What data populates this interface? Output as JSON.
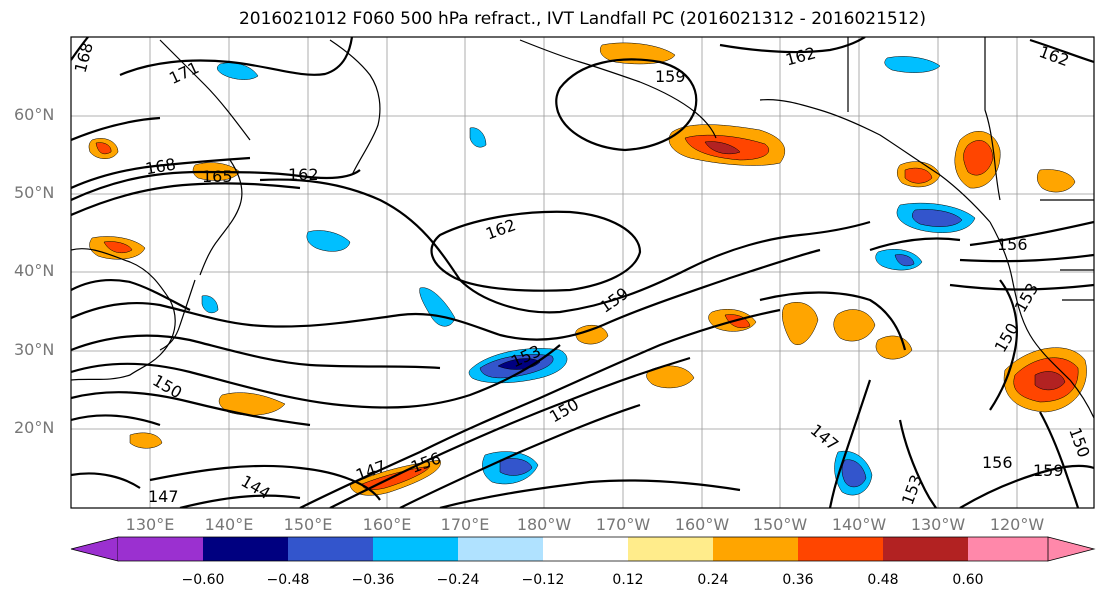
{
  "title": "2016021012 F060 500 hPa refract., IVT Landfall PC (2016021312 - 2016021512)",
  "lat_labels": [
    "60°N",
    "50°N",
    "40°N",
    "30°N",
    "20°N"
  ],
  "lon_labels": [
    "130°E",
    "140°E",
    "150°E",
    "160°E",
    "170°E",
    "180°W",
    "170°W",
    "160°W",
    "150°W",
    "140°W",
    "130°W",
    "120°W"
  ],
  "contour_labels": [
    "168",
    "171",
    "168",
    "165",
    "162",
    "162",
    "162",
    "159",
    "159",
    "156",
    "153",
    "150",
    "153",
    "150",
    "150",
    "147",
    "156",
    "147",
    "144",
    "147",
    "153",
    "156",
    "159",
    "150",
    "162"
  ],
  "colorbar": {
    "colors": [
      "#9b30d0",
      "#000080",
      "#3355cc",
      "#00bfff",
      "#b0e2ff",
      "#ffffff",
      "#ffec8b",
      "#ffa500",
      "#ff4500",
      "#b22222",
      "#ff88aa"
    ],
    "tick_labels": [
      "−0.60",
      "−0.48",
      "−0.36",
      "−0.24",
      "−0.12",
      "0.12",
      "0.24",
      "0.36",
      "0.48",
      "0.60"
    ]
  }
}
